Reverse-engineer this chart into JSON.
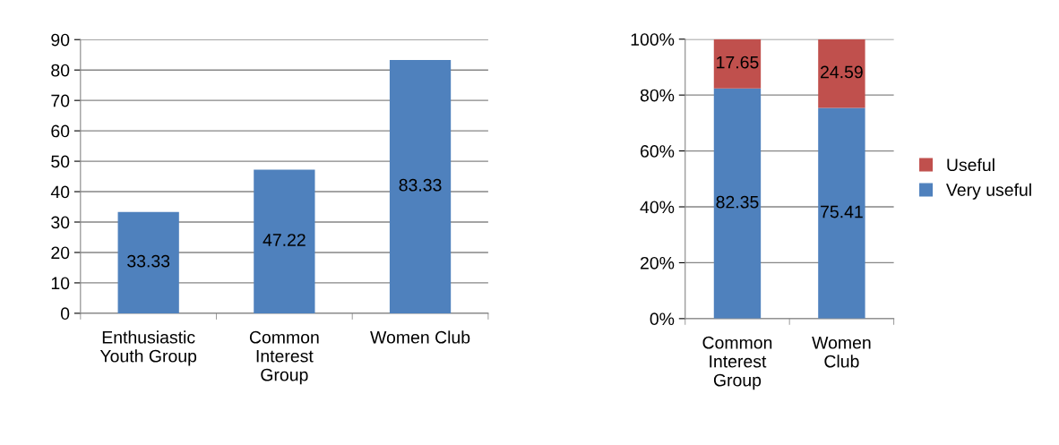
{
  "chart_data": [
    {
      "type": "bar",
      "categories": [
        "Enthusiastic Youth Group",
        "Common Interest Group",
        "Women Club"
      ],
      "values": [
        33.33,
        47.22,
        83.33
      ],
      "color": "#4f81bd",
      "ylim": [
        0,
        90
      ],
      "yticks": [
        0,
        10,
        20,
        30,
        40,
        50,
        60,
        70,
        80,
        90
      ],
      "grid": "y",
      "data_labels": true
    },
    {
      "type": "bar",
      "stacked": true,
      "categories": [
        "Common Interest Group",
        "Women Club"
      ],
      "series": [
        {
          "name": "Very useful",
          "color": "#4f81bd",
          "values": [
            82.35,
            75.41
          ]
        },
        {
          "name": "Useful",
          "color": "#c0504d",
          "values": [
            17.65,
            24.59
          ]
        }
      ],
      "ylim": [
        0,
        100
      ],
      "yticks": [
        {
          "value": 0,
          "label": "0%"
        },
        {
          "value": 20,
          "label": "20%"
        },
        {
          "value": 40,
          "label": "40%"
        },
        {
          "value": 60,
          "label": "60%"
        },
        {
          "value": 80,
          "label": "80%"
        },
        {
          "value": 100,
          "label": "100%"
        }
      ],
      "grid": "y",
      "data_labels": true,
      "legend": "right"
    }
  ]
}
